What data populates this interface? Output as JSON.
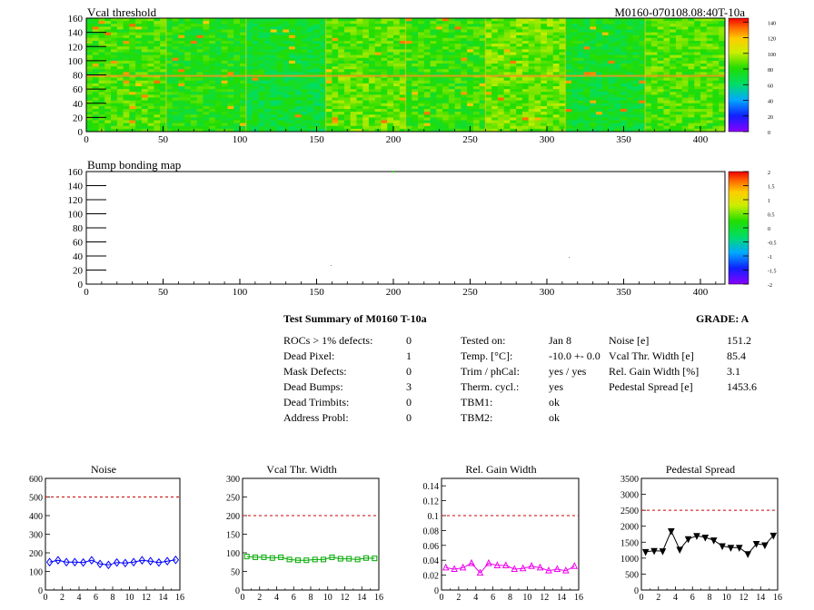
{
  "maps": [
    {
      "title": "Vcal threshold",
      "run_label": "M0160-070108.08:40T-10a",
      "type": "heatmap",
      "xlim": [
        0,
        416
      ],
      "ylim": [
        0,
        160
      ],
      "x_ticks": [
        "0",
        "50",
        "100",
        "150",
        "200",
        "250",
        "300",
        "350",
        "400"
      ],
      "y_ticks": [
        "0",
        "20",
        "40",
        "60",
        "80",
        "100",
        "120",
        "140",
        "160"
      ],
      "z_ticks": [
        "0",
        "20",
        "40",
        "60",
        "80",
        "100",
        "120",
        "140"
      ],
      "z_range": [
        0,
        145
      ],
      "roc_mean_values": [
        [
          85,
          78,
          70,
          88,
          82,
          90,
          72,
          85
        ],
        [
          84,
          78,
          72,
          86,
          82,
          90,
          74,
          86
        ]
      ]
    },
    {
      "title": "Bump bonding map",
      "type": "heatmap",
      "xlim": [
        0,
        416
      ],
      "ylim": [
        0,
        160
      ],
      "x_ticks": [
        "0",
        "50",
        "100",
        "150",
        "200",
        "250",
        "300",
        "350",
        "400"
      ],
      "y_ticks": [
        "0",
        "20",
        "40",
        "60",
        "80",
        "100",
        "120",
        "140",
        "160"
      ],
      "z_ticks": [
        "-2",
        "-1.5",
        "-1",
        "-0.5",
        "0",
        "0.5",
        "1",
        "1.5",
        "2"
      ],
      "z_range": [
        -2,
        2
      ]
    }
  ],
  "summary": {
    "heading": "Test Summary of M0160     T-10a",
    "grade": "GRADE:  A",
    "col1": [
      {
        "label": "ROCs > 1% defects:",
        "value": "0"
      },
      {
        "label": "Dead Pixel:",
        "value": "1"
      },
      {
        "label": "Mask Defects:",
        "value": "0"
      },
      {
        "label": "Dead Bumps:",
        "value": "3"
      },
      {
        "label": "Dead Trimbits:",
        "value": "0"
      },
      {
        "label": "Address Probl:",
        "value": "0"
      }
    ],
    "col2": [
      {
        "label": "Tested on:",
        "value": "Jan 8"
      },
      {
        "label": "Temp. [°C]:",
        "value": "-10.0 +- 0.0"
      },
      {
        "label": "Trim / phCal:",
        "value": "yes / yes"
      },
      {
        "label": "Therm. cycl.:",
        "value": "yes"
      },
      {
        "label": "TBM1:",
        "value": "ok"
      },
      {
        "label": "TBM2:",
        "value": "ok"
      }
    ],
    "col3": [
      {
        "label": "Noise [e]",
        "value": "151.2"
      },
      {
        "label": "Vcal Thr. Width [e]",
        "value": "85.4"
      },
      {
        "label": "Rel. Gain Width [%]",
        "value": "3.1"
      },
      {
        "label": "Pedestal Spread [e]",
        "value": "1453.6"
      }
    ]
  },
  "chart_data": [
    {
      "type": "line",
      "title": "Noise",
      "x": [
        0,
        1,
        2,
        3,
        4,
        5,
        6,
        7,
        8,
        9,
        10,
        11,
        12,
        13,
        14,
        15
      ],
      "values": [
        150,
        160,
        150,
        150,
        148,
        160,
        140,
        135,
        148,
        145,
        150,
        160,
        155,
        148,
        155,
        162
      ],
      "xlim": [
        0,
        16
      ],
      "ylim": [
        0,
        600
      ],
      "limit": 500,
      "x_ticks": [
        "0",
        "2",
        "4",
        "6",
        "8",
        "10",
        "12",
        "14",
        "16"
      ],
      "y_ticks": [
        "0",
        "100",
        "200",
        "300",
        "400",
        "500",
        "600"
      ],
      "color": "#0000ff",
      "marker": "diamond"
    },
    {
      "type": "line",
      "title": "Vcal Thr. Width",
      "x": [
        0,
        1,
        2,
        3,
        4,
        5,
        6,
        7,
        8,
        9,
        10,
        11,
        12,
        13,
        14,
        15
      ],
      "values": [
        90,
        88,
        88,
        86,
        88,
        82,
        80,
        80,
        82,
        82,
        88,
        84,
        84,
        82,
        86,
        85
      ],
      "xlim": [
        0,
        16
      ],
      "ylim": [
        0,
        300
      ],
      "limit": 200,
      "x_ticks": [
        "0",
        "2",
        "4",
        "6",
        "8",
        "10",
        "12",
        "14",
        "16"
      ],
      "y_ticks": [
        "0",
        "50",
        "100",
        "150",
        "200",
        "250",
        "300"
      ],
      "color": "#00aa00",
      "marker": "square"
    },
    {
      "type": "line",
      "title": "Rel. Gain Width",
      "x": [
        0,
        1,
        2,
        3,
        4,
        5,
        6,
        7,
        8,
        9,
        10,
        11,
        12,
        13,
        14,
        15
      ],
      "values": [
        0.03,
        0.028,
        0.03,
        0.036,
        0.023,
        0.036,
        0.033,
        0.033,
        0.028,
        0.029,
        0.032,
        0.03,
        0.026,
        0.028,
        0.026,
        0.032
      ],
      "xlim": [
        0,
        16
      ],
      "ylim": [
        0,
        0.15
      ],
      "limit": 0.1,
      "x_ticks": [
        "0",
        "2",
        "4",
        "6",
        "8",
        "10",
        "12",
        "14",
        "16"
      ],
      "y_ticks": [
        "0",
        "0.02",
        "0.04",
        "0.06",
        "0.08",
        "0.1",
        "0.12",
        "0.14"
      ],
      "color": "#ee00ee",
      "marker": "triangle"
    },
    {
      "type": "line",
      "title": "Pedestal Spread",
      "x": [
        0,
        1,
        2,
        3,
        4,
        5,
        6,
        7,
        8,
        9,
        10,
        11,
        12,
        13,
        14,
        15
      ],
      "values": [
        1200,
        1230,
        1220,
        1850,
        1270,
        1600,
        1700,
        1650,
        1560,
        1380,
        1330,
        1330,
        1130,
        1450,
        1410,
        1710
      ],
      "xlim": [
        0,
        16
      ],
      "ylim": [
        0,
        3500
      ],
      "limit": 2500,
      "x_ticks": [
        "0",
        "2",
        "4",
        "6",
        "8",
        "10",
        "12",
        "14",
        "16"
      ],
      "y_ticks": [
        "0",
        "500",
        "1000",
        "1500",
        "2000",
        "2500",
        "3000",
        "3500"
      ],
      "color": "#000000",
      "marker": "triangle-down"
    }
  ]
}
